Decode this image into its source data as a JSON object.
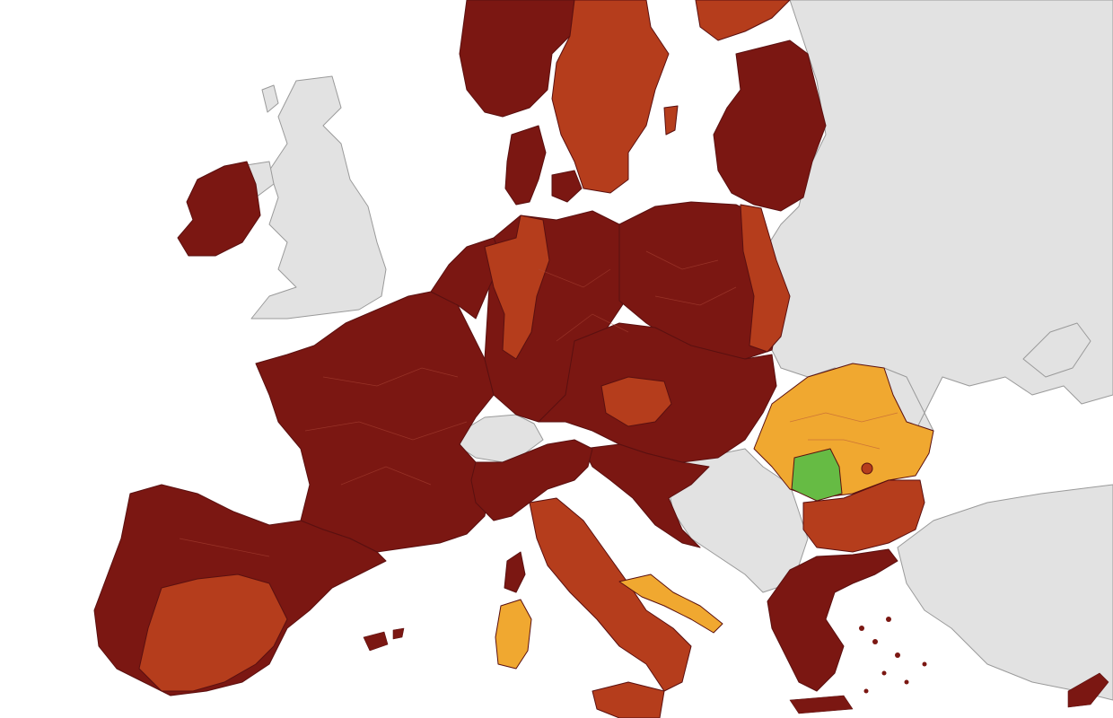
{
  "legend": {
    "dark_red": "#7b1712",
    "red": "#b53d1c",
    "orange": "#f0a830",
    "green": "#66bb44",
    "grey": "#e2e2e2",
    "border": "#5a1010"
  },
  "regions": [
    {
      "name": "ireland",
      "level": "dark_red"
    },
    {
      "name": "norway",
      "level": "dark_red"
    },
    {
      "name": "sweden",
      "level": "red"
    },
    {
      "name": "finland",
      "level": "red"
    },
    {
      "name": "estonia-latvia-lithuania",
      "level": "dark_red"
    },
    {
      "name": "denmark",
      "level": "dark_red"
    },
    {
      "name": "benelux",
      "level": "dark_red"
    },
    {
      "name": "germany",
      "level": "dark_red"
    },
    {
      "name": "germany-west-regions",
      "level": "red"
    },
    {
      "name": "poland",
      "level": "dark_red"
    },
    {
      "name": "poland-east-regions",
      "level": "red"
    },
    {
      "name": "france",
      "level": "dark_red"
    },
    {
      "name": "spain-portugal",
      "level": "dark_red"
    },
    {
      "name": "spain-central-regions",
      "level": "red"
    },
    {
      "name": "italy-north",
      "level": "dark_red"
    },
    {
      "name": "italy-south",
      "level": "red"
    },
    {
      "name": "puglia",
      "level": "orange"
    },
    {
      "name": "sardinia",
      "level": "orange"
    },
    {
      "name": "sicily",
      "level": "red"
    },
    {
      "name": "corsica",
      "level": "dark_red"
    },
    {
      "name": "czechia-slovakia-hungary",
      "level": "dark_red"
    },
    {
      "name": "slovakia-region",
      "level": "red"
    },
    {
      "name": "romania",
      "level": "orange"
    },
    {
      "name": "romania-southwest",
      "level": "green"
    },
    {
      "name": "bulgaria",
      "level": "red"
    },
    {
      "name": "greece",
      "level": "dark_red"
    },
    {
      "name": "croatia-slovenia",
      "level": "dark_red"
    },
    {
      "name": "cyprus",
      "level": "dark_red"
    },
    {
      "name": "united-kingdom",
      "level": "grey"
    },
    {
      "name": "switzerland",
      "level": "grey"
    },
    {
      "name": "western-balkans",
      "level": "grey"
    },
    {
      "name": "ukraine-belarus-russia",
      "level": "grey"
    },
    {
      "name": "turkey",
      "level": "grey"
    }
  ]
}
